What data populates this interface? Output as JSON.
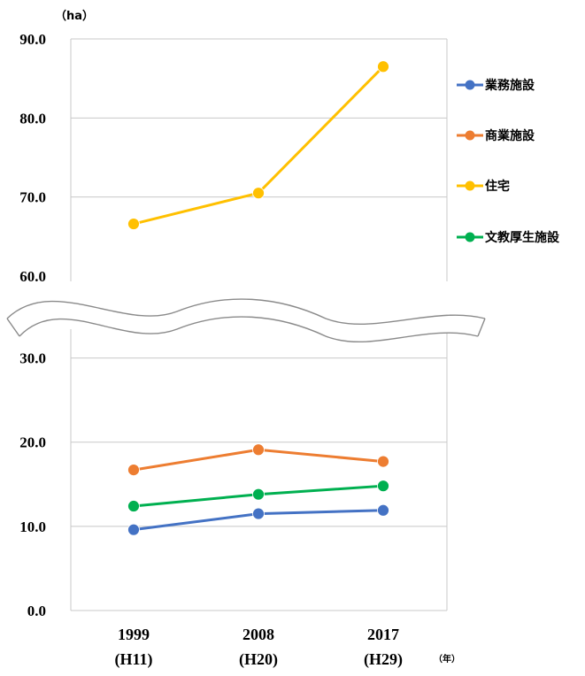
{
  "chart_data": {
    "type": "line",
    "y_unit": "（ha）",
    "x_unit": "（年）",
    "categories": [
      {
        "year": "1999",
        "era": "(H11)"
      },
      {
        "year": "2008",
        "era": "(H20)"
      },
      {
        "year": "2017",
        "era": "(H29)"
      }
    ],
    "ylim_upper": [
      60,
      90
    ],
    "ylim_lower": [
      0,
      35
    ],
    "axis_break": "between 35 and 60",
    "yticks_upper": [
      "60.0",
      "70.0",
      "80.0",
      "90.0"
    ],
    "yticks_lower": [
      "0.0",
      "10.0",
      "20.0",
      "30.0"
    ],
    "grid": true,
    "legend_position": "right",
    "series": [
      {
        "name": "業務施設",
        "color": "#4472C4",
        "values": [
          9.6,
          11.5,
          11.9
        ]
      },
      {
        "name": "商業施設",
        "color": "#ED7D31",
        "values": [
          16.7,
          19.1,
          17.7
        ]
      },
      {
        "name": "住宅",
        "color": "#FFC000",
        "values": [
          66.6,
          70.5,
          86.5
        ]
      },
      {
        "name": "文教厚生施設",
        "color": "#00B050",
        "values": [
          12.4,
          13.8,
          14.8
        ]
      }
    ]
  }
}
